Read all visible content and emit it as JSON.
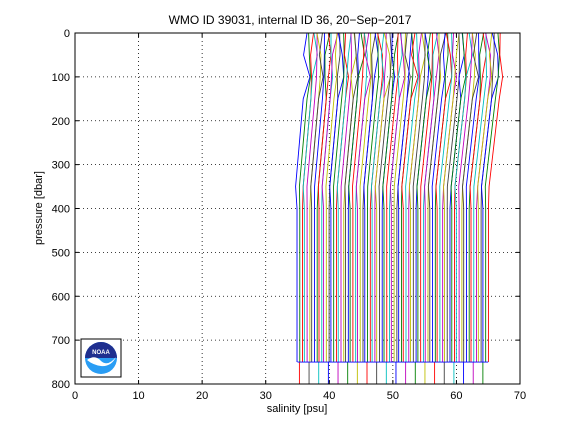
{
  "chart_data": {
    "type": "line",
    "title": "WMO ID 39031, internal ID 36, 20−Sep−2017",
    "xlabel": "salinity [psu]",
    "ylabel": "pressure [dbar]",
    "xlim": [
      0,
      70
    ],
    "ylim": [
      0,
      800
    ],
    "y_reversed": true,
    "grid": true,
    "grid_style": "dotted",
    "x_ticks": [
      "0",
      "10",
      "20",
      "30",
      "40",
      "50",
      "60",
      "70"
    ],
    "y_ticks": [
      "0",
      "100",
      "200",
      "300",
      "400",
      "500",
      "600",
      "700",
      "800"
    ],
    "profiles": {
      "count": 80,
      "pressure_levels": [
        0,
        50,
        100,
        150,
        200,
        250,
        300,
        350,
        400,
        500,
        600,
        700,
        750
      ],
      "surface_salinity_start": 36.5,
      "surface_salinity_end": 67.0,
      "deep_salinity_start": 35.0,
      "deep_salinity_end": 65.0,
      "bottom_pressure": 750,
      "colors": [
        "#0000ff",
        "#008000",
        "#ff0000",
        "#00bfbf",
        "#bf00bf",
        "#bfbf00",
        "#404040"
      ]
    }
  },
  "logo": {
    "text": "NOAA",
    "colors": {
      "top": "#1f2f8f",
      "bottom": "#2a9df4",
      "bird": "#ffffff"
    }
  }
}
